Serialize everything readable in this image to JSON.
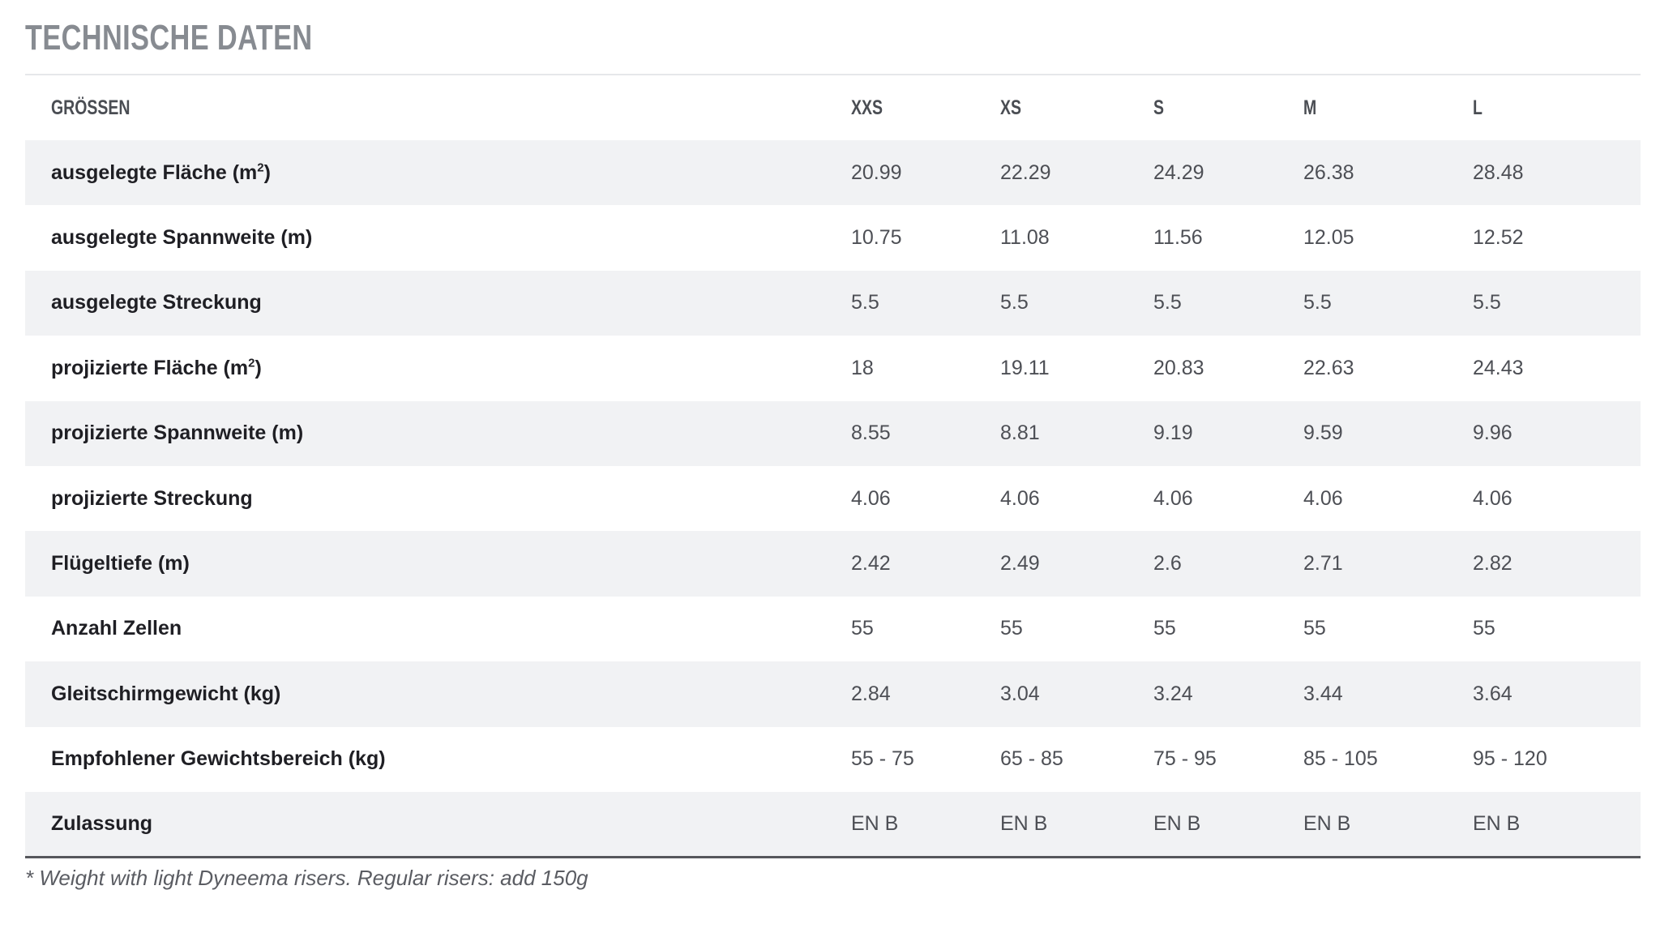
{
  "title": "TECHNISCHE DATEN",
  "table": {
    "headers": [
      "GRÖSSEN",
      "XXS",
      "XS",
      "S",
      "M",
      "L"
    ],
    "rows": [
      {
        "label": "ausgelegte Fläche (m",
        "sup": "2",
        "label_end": ")",
        "values": [
          "20.99",
          "22.29",
          "24.29",
          "26.38",
          "28.48"
        ]
      },
      {
        "label": "ausgelegte Spannweite (m)",
        "values": [
          "10.75",
          "11.08",
          "11.56",
          "12.05",
          "12.52"
        ]
      },
      {
        "label": "ausgelegte Streckung",
        "values": [
          "5.5",
          "5.5",
          "5.5",
          "5.5",
          "5.5"
        ]
      },
      {
        "label": "projizierte Fläche (m",
        "sup": "2",
        "label_end": ")",
        "values": [
          "18",
          "19.11",
          "20.83",
          "22.63",
          "24.43"
        ]
      },
      {
        "label": "projizierte Spannweite (m)",
        "values": [
          "8.55",
          "8.81",
          "9.19",
          "9.59",
          "9.96"
        ]
      },
      {
        "label": "projizierte Streckung",
        "values": [
          "4.06",
          "4.06",
          "4.06",
          "4.06",
          "4.06"
        ]
      },
      {
        "label": "Flügeltiefe (m)",
        "values": [
          "2.42",
          "2.49",
          "2.6",
          "2.71",
          "2.82"
        ]
      },
      {
        "label": "Anzahl Zellen",
        "values": [
          "55",
          "55",
          "55",
          "55",
          "55"
        ]
      },
      {
        "label": "Gleitschirmgewicht (kg)",
        "values": [
          "2.84",
          "3.04",
          "3.24",
          "3.44",
          "3.64"
        ]
      },
      {
        "label": "Empfohlener Gewichtsbereich (kg)",
        "values": [
          "55 - 75",
          "65 - 85",
          "75 - 95",
          "85 - 105",
          "95 - 120"
        ]
      },
      {
        "label": "Zulassung",
        "values": [
          "EN B",
          "EN B",
          "EN B",
          "EN B",
          "EN B"
        ]
      }
    ]
  },
  "footnote": "* Weight with light Dyneema risers. Regular risers: add 150g",
  "colors": {
    "title": "#878b91",
    "row_stripe": "#f1f2f4",
    "text": "#1f1f24"
  }
}
